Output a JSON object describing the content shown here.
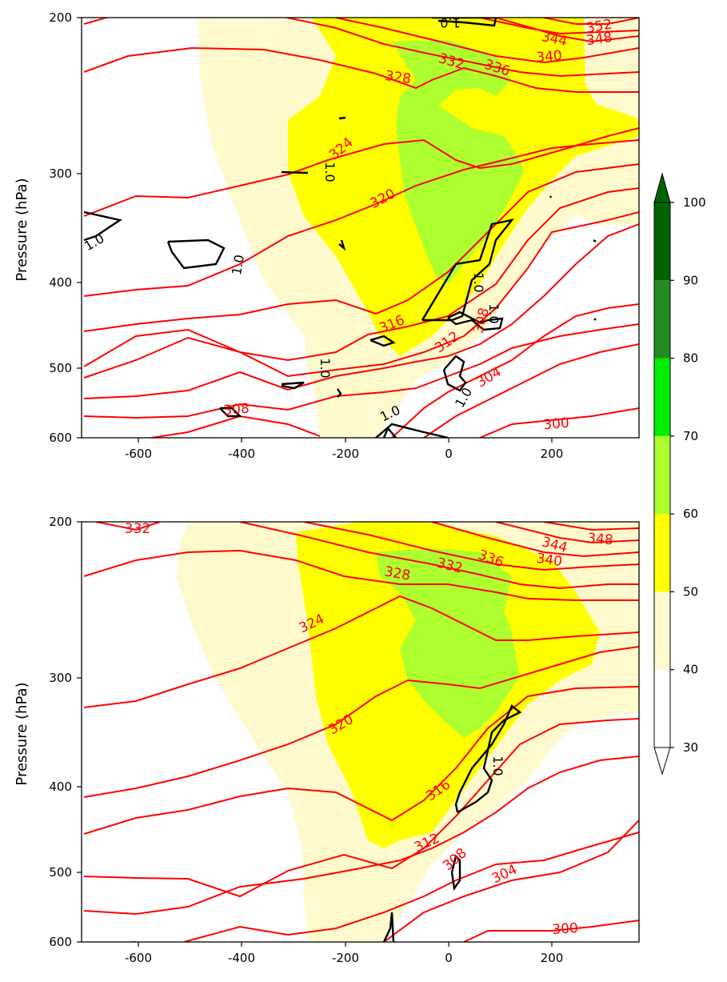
{
  "chart_data": [
    {
      "type": "contour",
      "ylabel": "Pressure (hPa)",
      "xlim": [
        -710,
        370
      ],
      "ylim": [
        600,
        200
      ],
      "yscale": "log",
      "xticks": [
        "-600",
        "-400",
        "-200",
        "0",
        "200"
      ],
      "yticks": [
        "200",
        "300",
        "400",
        "500",
        "600"
      ],
      "filled_field_levels": [
        40,
        50,
        60
      ],
      "theta_contour_labels": [
        "352",
        "348",
        "344",
        "340",
        "336",
        "332",
        "328",
        "324",
        "320",
        "316",
        "312",
        "308",
        "308",
        "304",
        "300"
      ],
      "highlight_contour_labels": [
        "1.0",
        "1.0",
        "1.0",
        "1.0",
        "1.0",
        "1.0",
        "1.0",
        "1.0",
        "1.0"
      ],
      "colors": {
        "theta": "#ff0000",
        "highlight": "#000000"
      }
    },
    {
      "type": "contour",
      "ylabel": "Pressure (hPa)",
      "xlim": [
        -710,
        370
      ],
      "ylim": [
        600,
        200
      ],
      "yscale": "log",
      "xticks": [
        "-600",
        "-400",
        "-200",
        "0",
        "200"
      ],
      "yticks": [
        "200",
        "300",
        "400",
        "500",
        "600"
      ],
      "filled_field_levels": [
        40,
        50,
        60
      ],
      "theta_contour_labels": [
        "348",
        "344",
        "340",
        "336",
        "332",
        "332",
        "328",
        "324",
        "320",
        "316",
        "312",
        "308",
        "304",
        "300"
      ],
      "highlight_contour_labels": [
        "1.0"
      ],
      "colors": {
        "theta": "#ff0000",
        "highlight": "#000000"
      }
    }
  ],
  "colorbar": {
    "ticks": [
      "30",
      "40",
      "50",
      "60",
      "70",
      "80",
      "90",
      "100"
    ],
    "bands": [
      {
        "from": 30,
        "to": 40,
        "color": "#ffffff"
      },
      {
        "from": 40,
        "to": 50,
        "color": "#fffacd"
      },
      {
        "from": 50,
        "to": 60,
        "color": "#ffff00"
      },
      {
        "from": 60,
        "to": 70,
        "color": "#adff2f"
      },
      {
        "from": 70,
        "to": 80,
        "color": "#00ee00"
      },
      {
        "from": 80,
        "to": 90,
        "color": "#228b22"
      },
      {
        "from": 90,
        "to": 100,
        "color": "#006400"
      }
    ],
    "extend": "both",
    "extend_colors": {
      "min": "#ffffff",
      "max": "#006400"
    }
  }
}
